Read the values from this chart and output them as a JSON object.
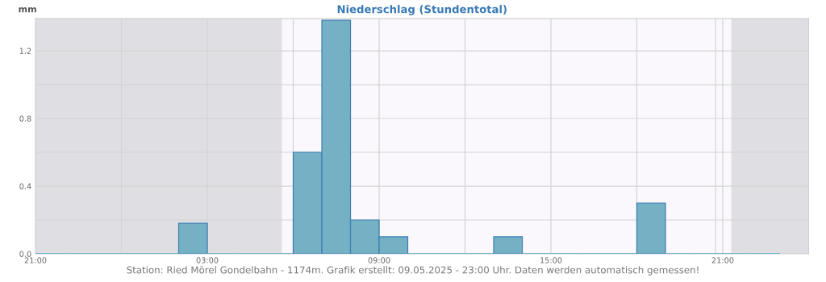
{
  "chart_data": {
    "type": "histogram",
    "title": "Niederschlag (Stundentotal)",
    "ylabel": "mm",
    "bins": [
      "2025-05-08T21:00",
      "2025-05-08T22:00",
      "2025-05-08T23:00",
      "2025-05-09T00:00",
      "2025-05-09T01:00",
      "2025-05-09T02:00",
      "2025-05-09T03:00",
      "2025-05-09T04:00",
      "2025-05-09T05:00",
      "2025-05-09T06:00",
      "2025-05-09T07:00",
      "2025-05-09T08:00",
      "2025-05-09T09:00",
      "2025-05-09T10:00",
      "2025-05-09T11:00",
      "2025-05-09T12:00",
      "2025-05-09T13:00",
      "2025-05-09T14:00",
      "2025-05-09T15:00",
      "2025-05-09T16:00",
      "2025-05-09T17:00",
      "2025-05-09T18:00",
      "2025-05-09T19:00",
      "2025-05-09T20:00",
      "2025-05-09T21:00",
      "2025-05-09T22:00",
      "2025-05-09T23:00"
    ],
    "values": [
      0,
      0,
      0,
      0,
      0,
      0.18,
      0,
      0,
      0,
      0.6,
      1.38,
      0.2,
      0.1,
      0,
      0,
      0,
      0.1,
      0,
      0,
      0,
      0,
      0.3,
      0,
      0,
      0,
      0
    ],
    "color": "#74b1c5",
    "xlim": [
      "2025-05-08T21:00",
      "2025-05-10T00:00"
    ],
    "xticks": [
      {
        "value": "2025-05-08T21:00",
        "label": "21:00"
      },
      {
        "value": "2025-05-09T00:00",
        "label": null
      },
      {
        "value": "2025-05-09T03:00",
        "label": "03:00"
      },
      {
        "value": "2025-05-09T06:00",
        "label": null
      },
      {
        "value": "2025-05-09T09:00",
        "label": "09:00"
      },
      {
        "value": "2025-05-09T12:00",
        "label": null
      },
      {
        "value": "2025-05-09T15:00",
        "label": "15:00"
      },
      {
        "value": "2025-05-09T18:00",
        "label": null
      },
      {
        "value": "2025-05-09T21:00",
        "label": "21:00"
      }
    ],
    "ylim": [
      0,
      1.39
    ],
    "yticks": [
      {
        "value": 0,
        "label": "0.0"
      },
      {
        "value": 0.2,
        "label": null
      },
      {
        "value": 0.4,
        "label": "0.4"
      },
      {
        "value": 0.6,
        "label": null
      },
      {
        "value": 0.8,
        "label": "0.8"
      },
      {
        "value": 1.0,
        "label": null
      },
      {
        "value": 1.2,
        "label": "1.2"
      }
    ],
    "grid": true,
    "bands": [
      {
        "axis": "x",
        "from": "2025-05-08T21:00",
        "to": "2025-05-09T05:36",
        "color": "#dfdee3"
      },
      {
        "axis": "x",
        "from": "2025-05-09T21:18",
        "to": "2025-05-10T00:00",
        "color": "#dfdee3"
      }
    ],
    "ref_lines": [
      {
        "axis": "x",
        "value": "2025-05-09T20:45",
        "color": "#d8d8d8"
      }
    ],
    "annotations": [
      "Station: Ried Mörel Gondelbahn - 1174m. Grafik erstellt: 09.05.2025 - 23:00 Uhr. Daten werden automatisch gemessen!"
    ]
  }
}
